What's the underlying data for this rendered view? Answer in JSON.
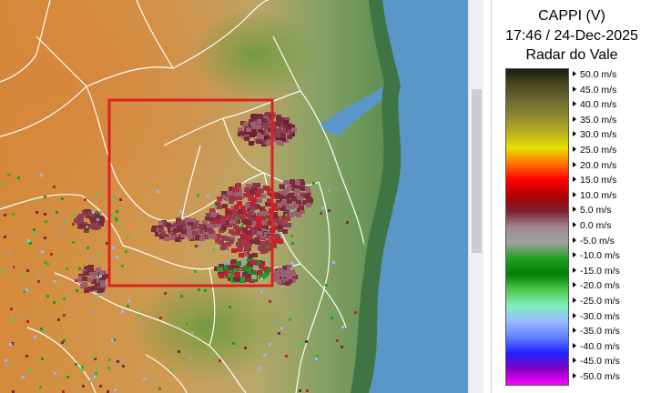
{
  "legend": {
    "title_line1": "CAPPI (V)",
    "title_line2": "17:46 / 24-Dec-2025",
    "title_line3": "Radar do Vale",
    "ticks": [
      "50.0 m/s",
      "45.0 m/s",
      "40.0 m/s",
      "35.0 m/s",
      "30.0 m/s",
      "25.0 m/s",
      "20.0 m/s",
      "15.0 m/s",
      "10.0 m/s",
      "5.0 m/s",
      "0.0 m/s",
      "-5.0 m/s",
      "-10.0 m/s",
      "-15.0 m/s",
      "-20.0 m/s",
      "-25.0 m/s",
      "-30.0 m/s",
      "-35.0 m/s",
      "-40.0 m/s",
      "-45.0 m/s",
      "-50.0 m/s"
    ],
    "colors": [
      "#1a1a10",
      "#4a4a22",
      "#6e6a30",
      "#8f8a2e",
      "#b8b020",
      "#e8e000",
      "#ff7000",
      "#ff0000",
      "#b00000",
      "#7a2030",
      "#a08890",
      "#a0a0a0",
      "#20a020",
      "#008000",
      "#50c850",
      "#80f0c0",
      "#9ab8ff",
      "#6080ff",
      "#2020ff",
      "#8000c0",
      "#ff00ff"
    ]
  },
  "map": {
    "ocean_color": "#5a96c8",
    "land_low_color": "#5c8a52",
    "land_high_color": "#d38a3c",
    "region_box_color": "#e02020"
  }
}
